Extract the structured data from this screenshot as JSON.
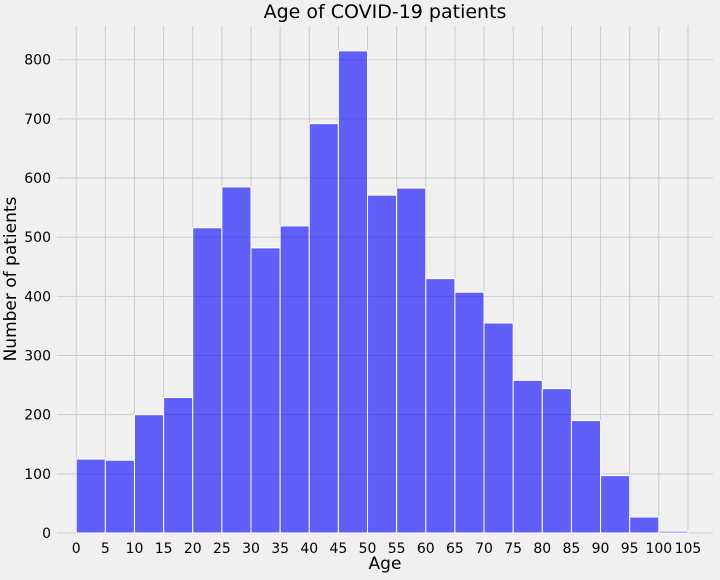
{
  "chart_data": {
    "type": "bar",
    "title": "Age of COVID-19 patients",
    "xlabel": "Age",
    "ylabel": "Number of patients",
    "bin_edges": [
      0,
      5,
      10,
      15,
      20,
      25,
      30,
      35,
      40,
      45,
      50,
      55,
      60,
      65,
      70,
      75,
      80,
      85,
      90,
      95,
      100,
      105
    ],
    "values": [
      125,
      123,
      200,
      229,
      516,
      585,
      482,
      519,
      692,
      815,
      571,
      583,
      430,
      407,
      355,
      258,
      244,
      190,
      97,
      27,
      3
    ],
    "x_ticks": [
      0,
      5,
      10,
      15,
      20,
      25,
      30,
      35,
      40,
      45,
      50,
      55,
      60,
      65,
      70,
      75,
      80,
      85,
      90,
      95,
      100,
      105
    ],
    "y_ticks": [
      0,
      100,
      200,
      300,
      400,
      500,
      600,
      700,
      800
    ],
    "xlim": [
      -3.3,
      109.3
    ],
    "ylim": [
      0,
      857
    ],
    "grid": true,
    "colors": {
      "bar_fill": "#0000ff",
      "background": "#f0f0f0",
      "grid": "#cbcbcb"
    }
  }
}
